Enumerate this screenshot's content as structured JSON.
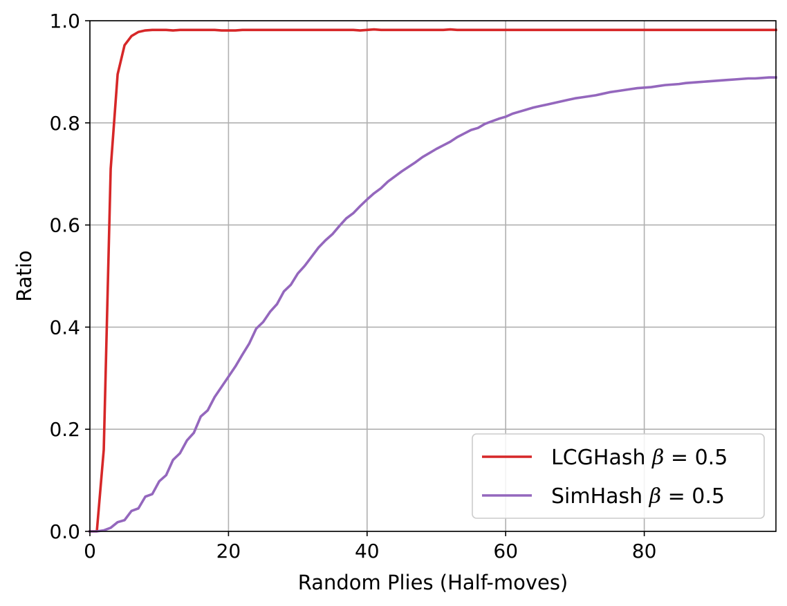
{
  "chart_data": {
    "type": "line",
    "title": "",
    "xlabel": "Random Plies (Half-moves)",
    "ylabel": "Ratio",
    "xlim": [
      0,
      99
    ],
    "ylim": [
      0,
      1.0
    ],
    "xticks": [
      0,
      20,
      40,
      60,
      80
    ],
    "yticks": [
      0.0,
      0.2,
      0.4,
      0.6,
      0.8,
      1.0
    ],
    "xtick_labels": [
      "0",
      "20",
      "40",
      "60",
      "80"
    ],
    "ytick_labels": [
      "0.0",
      "0.2",
      "0.4",
      "0.6",
      "0.8",
      "1.0"
    ],
    "grid": true,
    "legend_position": "bottom-right",
    "x": [
      0,
      1,
      2,
      3,
      4,
      5,
      6,
      7,
      8,
      9,
      10,
      11,
      12,
      13,
      14,
      15,
      16,
      17,
      18,
      19,
      20,
      21,
      22,
      23,
      24,
      25,
      26,
      27,
      28,
      29,
      30,
      31,
      32,
      33,
      34,
      35,
      36,
      37,
      38,
      39,
      40,
      41,
      42,
      43,
      44,
      45,
      46,
      47,
      48,
      49,
      50,
      51,
      52,
      53,
      54,
      55,
      56,
      57,
      58,
      59,
      60,
      61,
      62,
      63,
      64,
      65,
      66,
      67,
      68,
      69,
      70,
      71,
      72,
      73,
      74,
      75,
      76,
      77,
      78,
      79,
      80,
      81,
      82,
      83,
      84,
      85,
      86,
      87,
      88,
      89,
      90,
      91,
      92,
      93,
      94,
      95,
      96,
      97,
      98,
      99
    ],
    "series": [
      {
        "name": "LCGHash",
        "legend_prefix": "LCGHash ",
        "legend_beta": "β",
        "legend_suffix": " = 0.5",
        "color": "#d62728",
        "values": [
          0.0,
          0.0,
          0.16,
          0.71,
          0.895,
          0.952,
          0.97,
          0.978,
          0.981,
          0.982,
          0.982,
          0.982,
          0.981,
          0.982,
          0.982,
          0.982,
          0.982,
          0.982,
          0.982,
          0.981,
          0.981,
          0.981,
          0.982,
          0.982,
          0.982,
          0.982,
          0.982,
          0.982,
          0.982,
          0.982,
          0.982,
          0.982,
          0.982,
          0.982,
          0.982,
          0.982,
          0.982,
          0.982,
          0.982,
          0.981,
          0.982,
          0.983,
          0.982,
          0.982,
          0.982,
          0.982,
          0.982,
          0.982,
          0.982,
          0.982,
          0.982,
          0.982,
          0.983,
          0.982,
          0.982,
          0.982,
          0.982,
          0.982,
          0.982,
          0.982,
          0.982,
          0.982,
          0.982,
          0.982,
          0.982,
          0.982,
          0.982,
          0.982,
          0.982,
          0.982,
          0.982,
          0.982,
          0.982,
          0.982,
          0.982,
          0.982,
          0.982,
          0.982,
          0.982,
          0.982,
          0.982,
          0.982,
          0.982,
          0.982,
          0.982,
          0.982,
          0.982,
          0.982,
          0.982,
          0.982,
          0.982,
          0.982,
          0.982,
          0.982,
          0.982,
          0.982,
          0.982,
          0.982,
          0.982,
          0.982
        ]
      },
      {
        "name": "SimHash",
        "legend_prefix": "SimHash ",
        "legend_beta": "β",
        "legend_suffix": " = 0.5",
        "color": "#9467bd",
        "values": [
          0.0,
          0.0,
          0.002,
          0.007,
          0.018,
          0.022,
          0.04,
          0.045,
          0.068,
          0.073,
          0.098,
          0.11,
          0.14,
          0.153,
          0.178,
          0.193,
          0.225,
          0.237,
          0.263,
          0.283,
          0.303,
          0.323,
          0.346,
          0.368,
          0.397,
          0.41,
          0.43,
          0.445,
          0.47,
          0.483,
          0.505,
          0.52,
          0.538,
          0.556,
          0.57,
          0.582,
          0.598,
          0.613,
          0.623,
          0.637,
          0.65,
          0.662,
          0.672,
          0.685,
          0.695,
          0.705,
          0.714,
          0.723,
          0.733,
          0.741,
          0.749,
          0.756,
          0.763,
          0.772,
          0.779,
          0.786,
          0.79,
          0.798,
          0.803,
          0.808,
          0.812,
          0.818,
          0.822,
          0.826,
          0.83,
          0.833,
          0.836,
          0.839,
          0.842,
          0.845,
          0.848,
          0.85,
          0.852,
          0.854,
          0.857,
          0.86,
          0.862,
          0.864,
          0.866,
          0.868,
          0.869,
          0.87,
          0.872,
          0.874,
          0.875,
          0.876,
          0.878,
          0.879,
          0.88,
          0.881,
          0.882,
          0.883,
          0.884,
          0.885,
          0.886,
          0.887,
          0.887,
          0.888,
          0.889,
          0.889
        ]
      }
    ]
  }
}
